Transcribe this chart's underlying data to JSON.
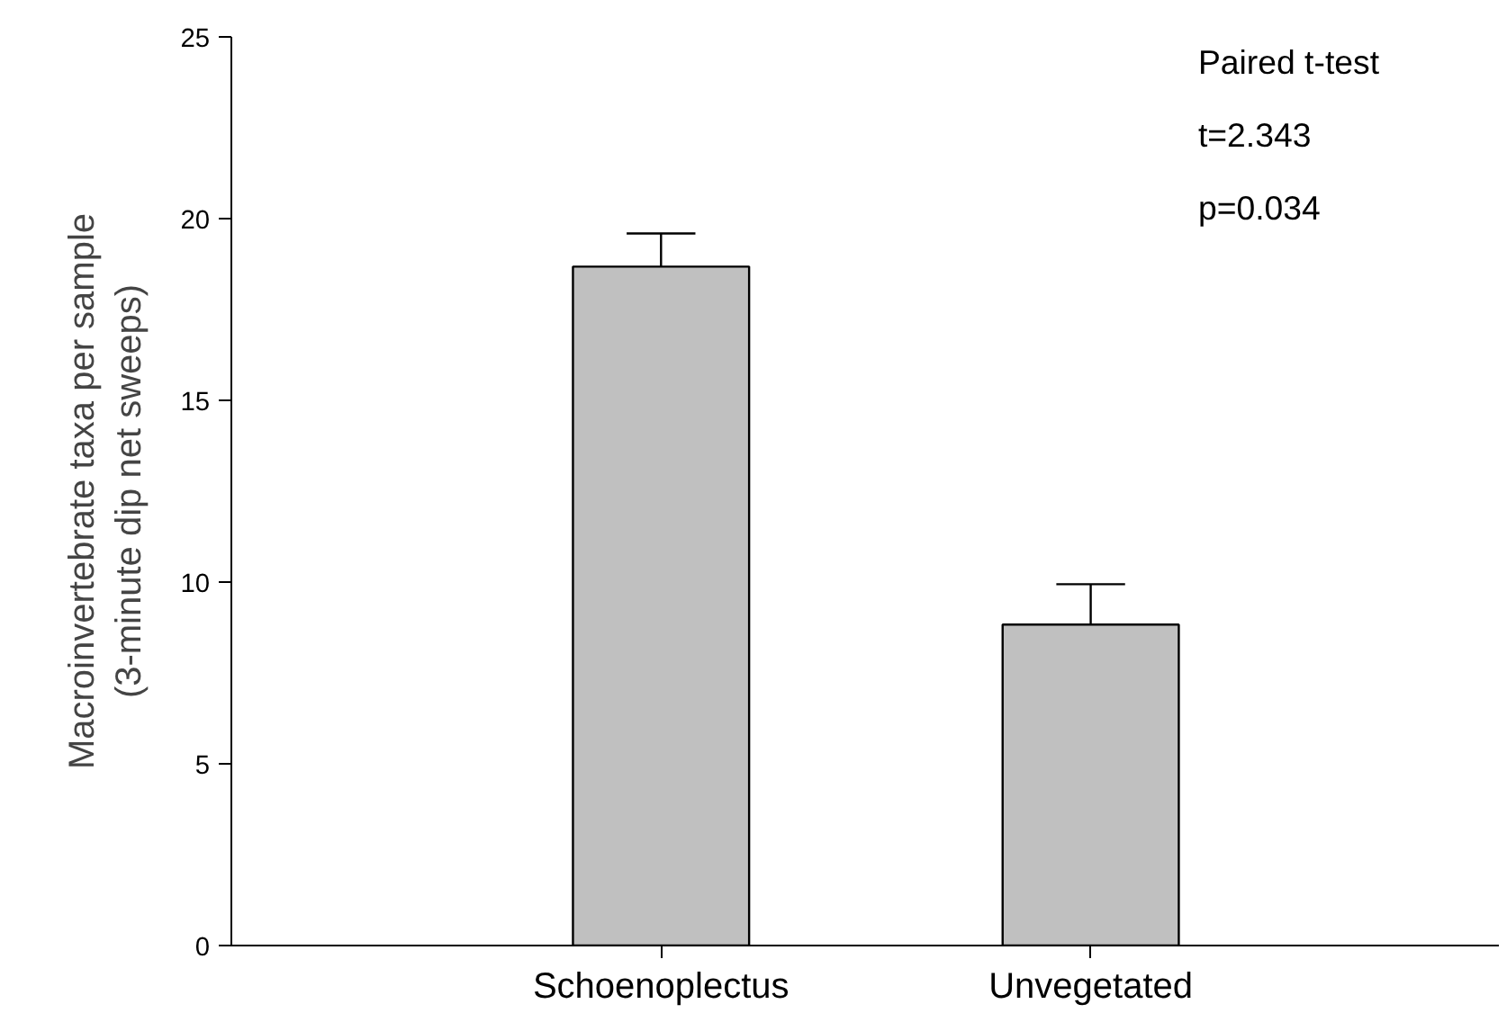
{
  "chart_data": {
    "type": "bar",
    "ylabel": "Macroinvertebrate taxa per sample\n(3-minute dip net sweeps)",
    "categories": [
      "Schoenoplectus",
      "Unvegetated"
    ],
    "values": [
      18.68,
      8.83
    ],
    "color": "#c0c0c0",
    "errors": [
      [
        18.68,
        19.59
      ],
      [
        8.83,
        9.94
      ]
    ],
    "ylim": [
      0,
      25
    ],
    "yticks": [
      0,
      5,
      10,
      15,
      20,
      25
    ],
    "grid": false,
    "annotations": [
      "Paired t-test",
      "t=2.343",
      "p=0.034"
    ]
  }
}
